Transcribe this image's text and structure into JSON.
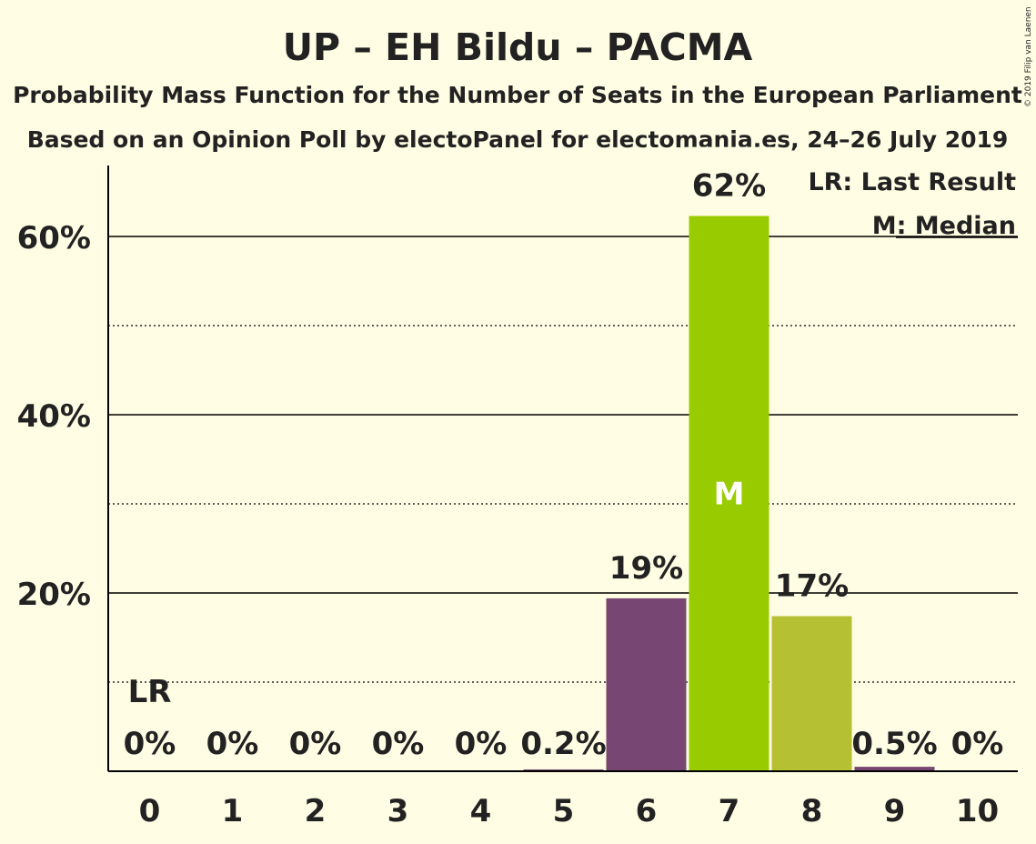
{
  "chart_data": {
    "type": "bar",
    "title": "UP – EH Bildu – PACMA",
    "subtitle1": "Probability Mass Function for the Number of Seats in the European Parliament",
    "subtitle2": "Based on an Opinion Poll by electoPanel for electomania.es, 24–26 July 2019",
    "copyright": "© 2019 Filip van Laenen",
    "categories": [
      "0",
      "1",
      "2",
      "3",
      "4",
      "5",
      "6",
      "7",
      "8",
      "9",
      "10"
    ],
    "values": [
      0,
      0,
      0,
      0,
      0,
      0.2,
      19.4,
      62.3,
      17.4,
      0.5,
      0
    ],
    "value_labels": [
      "0%",
      "0%",
      "0%",
      "0%",
      "0%",
      "0.2%",
      "19%",
      "62%",
      "17%",
      "0.5%",
      "0%"
    ],
    "bar_colors": [
      "#774672",
      "#774672",
      "#774672",
      "#774672",
      "#774672",
      "#774672",
      "#774672",
      "#99cc00",
      "#b5c033",
      "#774672",
      "#774672"
    ],
    "ylim": [
      0,
      68
    ],
    "y_ticks": [
      {
        "value": 20,
        "label": "20%"
      },
      {
        "value": 40,
        "label": "40%"
      },
      {
        "value": 60,
        "label": "60%"
      }
    ],
    "minor_gridlines": [
      10,
      30,
      50
    ],
    "last_result_index": 0,
    "last_result_marker": "LR",
    "median_index": 7,
    "median_marker": "M",
    "legend": {
      "position": "top-right",
      "last_result": "LR: Last Result",
      "median": "M: Median"
    },
    "colors": {
      "background": "#fffde3",
      "axis": "#000000",
      "text": "#222222"
    }
  }
}
